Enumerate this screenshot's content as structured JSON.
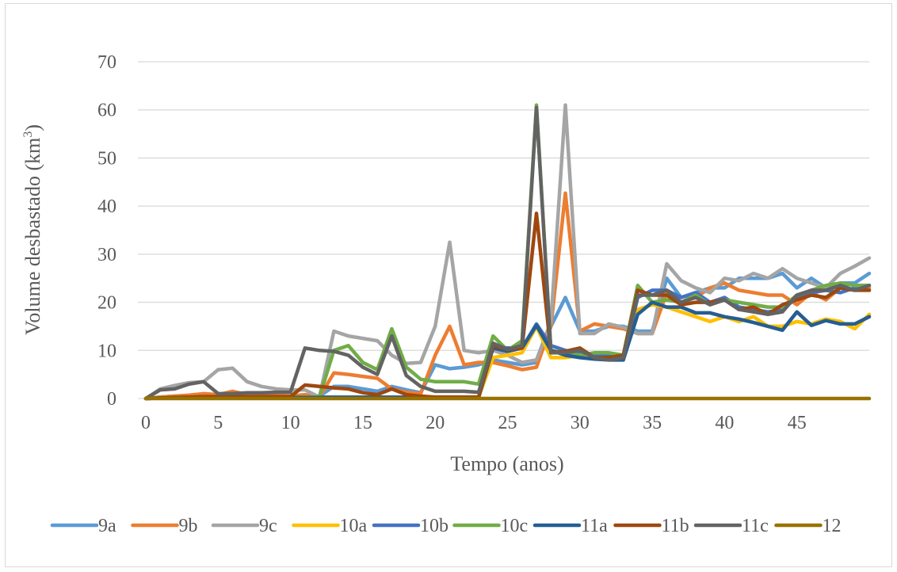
{
  "chart_data": {
    "type": "line",
    "title": "",
    "xlabel": "Tempo (anos)",
    "ylabel_main": "Volume desbastado (km",
    "ylabel_sup": "3",
    "ylabel_close": ")",
    "xlim": [
      0,
      50
    ],
    "ylim": [
      0,
      70
    ],
    "xticks": [
      0,
      5,
      10,
      15,
      20,
      25,
      30,
      35,
      40,
      45
    ],
    "yticks": [
      0,
      10,
      20,
      30,
      40,
      50,
      60,
      70
    ],
    "grid": "horizontal",
    "legend": "bottom",
    "x": [
      0,
      1,
      2,
      3,
      4,
      5,
      6,
      7,
      8,
      9,
      10,
      11,
      12,
      13,
      14,
      15,
      16,
      17,
      18,
      19,
      20,
      21,
      22,
      23,
      24,
      25,
      26,
      27,
      28,
      29,
      30,
      31,
      32,
      33,
      34,
      35,
      36,
      37,
      38,
      39,
      40,
      41,
      42,
      43,
      44,
      45,
      46,
      47,
      48,
      49,
      50
    ],
    "series": [
      {
        "name": "9a",
        "color": "#5b9bd5",
        "values": [
          0,
          0.3,
          0.5,
          0.6,
          0.7,
          0.8,
          0.8,
          0.7,
          0.6,
          0.5,
          0.4,
          0.4,
          0.5,
          2.5,
          2.5,
          2,
          1.5,
          2.5,
          1.8,
          1.2,
          7,
          6.2,
          6.5,
          7,
          8,
          7.5,
          7,
          7.5,
          15,
          21,
          14,
          14,
          15,
          15,
          14,
          14,
          25,
          21,
          22,
          23,
          23,
          25,
          25,
          25,
          26,
          23,
          25,
          23,
          24,
          24,
          26
        ]
      },
      {
        "name": "9b",
        "color": "#ed7d31",
        "values": [
          0,
          0.3,
          0.5,
          0.7,
          1,
          0.8,
          1.5,
          0.8,
          0.7,
          0.6,
          0.5,
          0.8,
          0.3,
          5.3,
          5,
          4.6,
          4.2,
          2,
          1.3,
          1,
          9,
          15,
          7,
          7.5,
          7.5,
          6.8,
          6,
          6.5,
          15,
          42.7,
          14,
          15.5,
          15,
          14.5,
          13.5,
          13.5,
          22,
          20,
          21,
          23,
          24,
          22.5,
          22,
          21.5,
          21.5,
          19.5,
          22,
          20.5,
          23,
          22.5,
          23
        ]
      },
      {
        "name": "9c",
        "color": "#a5a5a5",
        "values": [
          0,
          2,
          2.7,
          3.3,
          3.5,
          6,
          6.3,
          3.5,
          2.5,
          2,
          1.8,
          1.8,
          0.3,
          14,
          13,
          12.5,
          12,
          9,
          7.3,
          7.5,
          15,
          32.5,
          10,
          9.5,
          10,
          9,
          7.5,
          8,
          16,
          61,
          13.5,
          13.5,
          15.5,
          14.8,
          13.5,
          13.5,
          28,
          24.5,
          23,
          22,
          25,
          24.5,
          26,
          25,
          27,
          25,
          24,
          23,
          26,
          27.5,
          29.2
        ]
      },
      {
        "name": "10a",
        "color": "#ffc000",
        "values": [
          0,
          0.1,
          0.2,
          0.3,
          0.3,
          0.3,
          0.3,
          0.3,
          0.3,
          0.3,
          0.3,
          0.3,
          0.3,
          0.3,
          0.3,
          0.3,
          0.3,
          0.3,
          0.3,
          0.3,
          0.3,
          0.3,
          0.3,
          0.3,
          8.5,
          9,
          9.5,
          15,
          8.5,
          8.5,
          9,
          8.5,
          8.5,
          8.5,
          18.5,
          19.5,
          19,
          18,
          17,
          16,
          17,
          16,
          17,
          15,
          15,
          16,
          15.5,
          16.5,
          16,
          14.5,
          17.5
        ]
      },
      {
        "name": "10b",
        "color": "#4472c4",
        "values": [
          0,
          0.1,
          0.2,
          0.3,
          0.3,
          0.3,
          0.3,
          0.3,
          0.3,
          0.3,
          0.3,
          0.3,
          0.3,
          0.3,
          0.3,
          0.3,
          0.3,
          0.3,
          0.3,
          0.3,
          0.3,
          0.3,
          0.3,
          0.3,
          11,
          10.5,
          10.5,
          15.5,
          11,
          10,
          9.5,
          9,
          9,
          8.5,
          21,
          22.5,
          22.5,
          21,
          22,
          20,
          21,
          19,
          18.5,
          18,
          18.5,
          21,
          22,
          22.5,
          22,
          23,
          22.5
        ]
      },
      {
        "name": "10c",
        "color": "#70ad47",
        "values": [
          0,
          0.1,
          0.2,
          0.3,
          0.3,
          0.3,
          0.3,
          0.3,
          0.3,
          0.3,
          0.3,
          0.3,
          0.3,
          10,
          11,
          7.5,
          6,
          14.5,
          6.5,
          4,
          3.5,
          3.5,
          3.5,
          3,
          13,
          10,
          12,
          61,
          10,
          9.5,
          9,
          9.5,
          9.5,
          9,
          23.5,
          20,
          20.5,
          20,
          21.5,
          19.5,
          20.5,
          20,
          19.5,
          19,
          19,
          21.5,
          22.5,
          23.5,
          24,
          23.5,
          23.5
        ]
      },
      {
        "name": "11a",
        "color": "#255e91",
        "values": [
          0,
          0.1,
          0.1,
          0.2,
          0.2,
          0.2,
          0.2,
          0.2,
          0.2,
          0.2,
          0.2,
          0.2,
          0.2,
          0.2,
          0.2,
          0.2,
          0.2,
          0.2,
          0.2,
          0.2,
          0.2,
          0.2,
          0.2,
          0.2,
          10.5,
          9.8,
          10.5,
          15.2,
          10,
          9,
          8.5,
          8.2,
          8,
          8,
          17.5,
          20,
          19,
          19,
          17.8,
          17.8,
          17,
          16.5,
          15.8,
          15,
          14.2,
          18,
          15.2,
          16.2,
          15.5,
          15.5,
          17
        ]
      },
      {
        "name": "11b",
        "color": "#9e480e",
        "values": [
          0,
          0.1,
          0.2,
          0.3,
          0.4,
          0.4,
          0.4,
          0.4,
          0.4,
          0.4,
          0.4,
          2.8,
          2.5,
          2.2,
          2,
          1.2,
          0.8,
          2,
          0.8,
          0.5,
          0.3,
          0.3,
          0.3,
          0.3,
          11,
          10.2,
          10.5,
          38.5,
          9.5,
          9.8,
          10.5,
          8.5,
          8.5,
          9,
          22.5,
          21.5,
          21.5,
          19.5,
          20,
          20,
          20.5,
          18.5,
          19,
          17.5,
          19.5,
          20.5,
          21.5,
          21,
          23,
          22.5,
          22.5
        ]
      },
      {
        "name": "11c",
        "color": "#636363",
        "values": [
          0,
          1.8,
          2,
          3,
          3.5,
          1,
          1,
          1.2,
          1.2,
          1.3,
          1.3,
          10.5,
          10,
          9.8,
          9,
          6.5,
          5,
          13,
          4.8,
          2.5,
          1.5,
          1.5,
          1.5,
          1.3,
          11.5,
          10.2,
          11,
          60.5,
          9.5,
          9.5,
          10,
          8.5,
          8,
          8.5,
          21.5,
          21.5,
          22.5,
          20,
          21,
          19.5,
          20.5,
          18.5,
          18,
          17.5,
          18,
          21.5,
          22.5,
          22.5,
          23.5,
          22.5,
          23.5
        ]
      },
      {
        "name": "12",
        "color": "#997300",
        "values": [
          0,
          0,
          0,
          0,
          0,
          0,
          0,
          0,
          0,
          0,
          0,
          0,
          0,
          0,
          0,
          0,
          0,
          0,
          0,
          0,
          0,
          0,
          0,
          0,
          0,
          0,
          0,
          0,
          0,
          0,
          0,
          0,
          0,
          0,
          0,
          0,
          0,
          0,
          0,
          0,
          0,
          0,
          0,
          0,
          0,
          0,
          0,
          0,
          0,
          0,
          0
        ]
      }
    ]
  }
}
